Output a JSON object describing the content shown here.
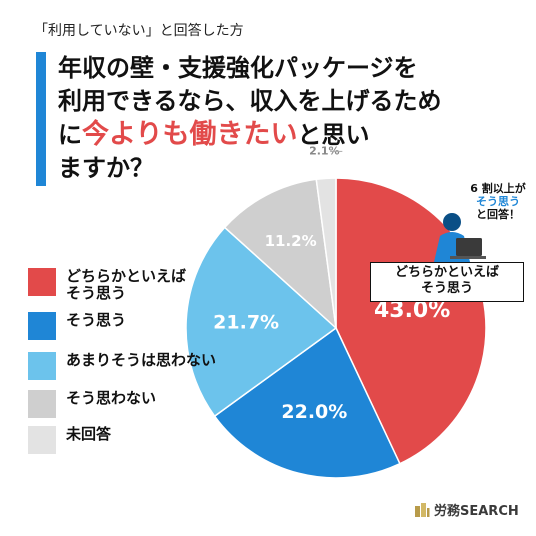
{
  "header": {
    "subtitle": "「利用していない」と回答した方",
    "title_line1": "年収の壁・支援強化パッケージを",
    "title_line2": "利用できるなら、収入を上げるため",
    "title_line3_pre": "に",
    "title_line3_highlight": "今よりも働きたい",
    "title_line3_post": "と思い",
    "title_line4": "ますか？"
  },
  "callout": {
    "top_line1": "6 割以上が",
    "top_line2": "そう思う",
    "top_line3": "と回答！",
    "box_text": "どちらかといえば\nそう思う"
  },
  "brand": {
    "name": "労務SEARCH"
  },
  "colors": {
    "red": "#e24a4a",
    "blue": "#1f86d6",
    "light_blue": "#6cc3ec",
    "gray": "#cfcfcf",
    "light_gray": "#e3e3e3"
  },
  "chart_data": {
    "type": "pie",
    "slices": [
      {
        "label": "どちらかといえば\nそう思う",
        "value": 43.0,
        "display": "43.0%",
        "color": "#e24a4a"
      },
      {
        "label": "そう思う",
        "value": 22.0,
        "display": "22.0%",
        "color": "#1f86d6"
      },
      {
        "label": "あまりそうは思わない",
        "value": 21.7,
        "display": "21.7%",
        "color": "#6cc3ec"
      },
      {
        "label": "そう思わない",
        "value": 11.2,
        "display": "11.2%",
        "color": "#cfcfcf"
      },
      {
        "label": "未回答",
        "value": 2.1,
        "display": "2.1%",
        "color": "#e3e3e3"
      }
    ],
    "start": "top",
    "direction": "clockwise",
    "legend_position": "left"
  }
}
